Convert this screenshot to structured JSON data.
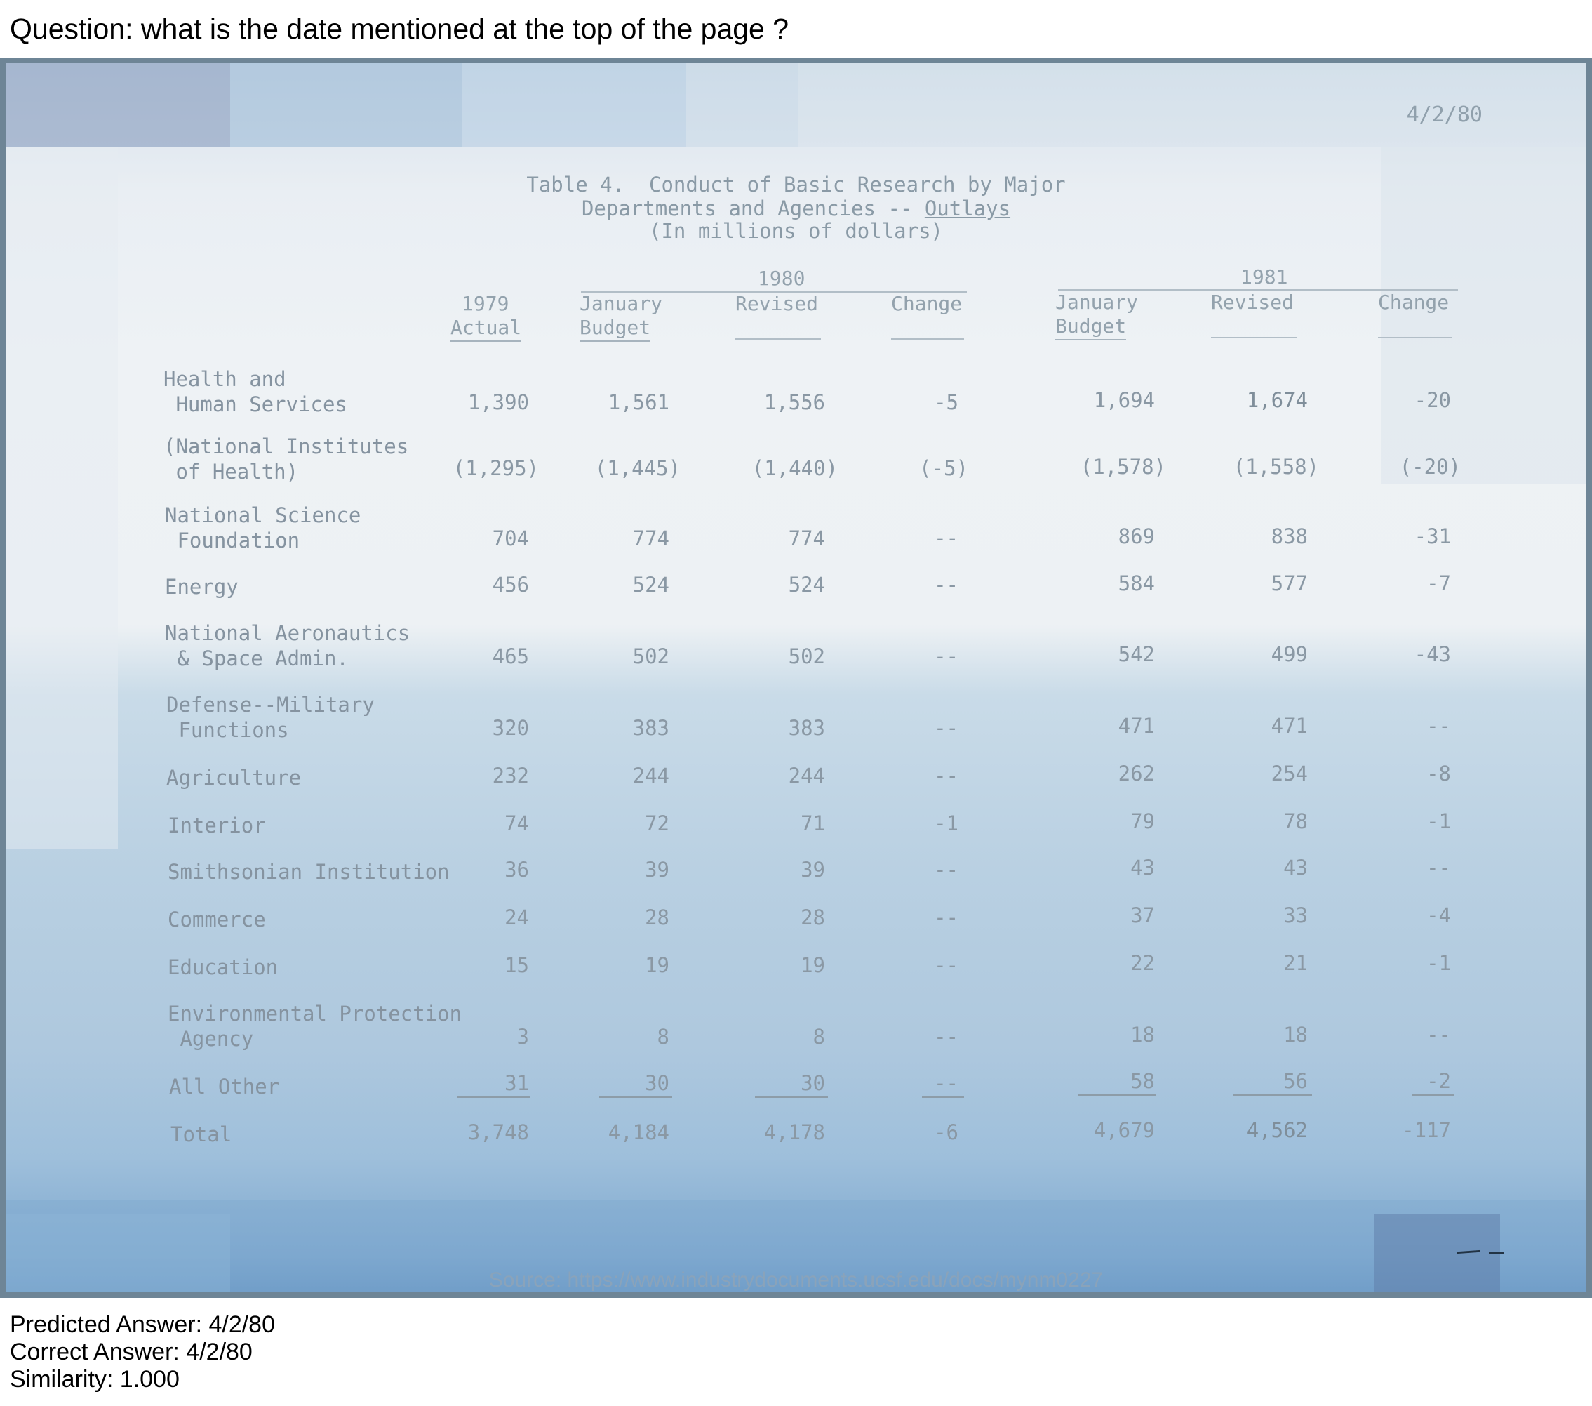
{
  "question": "Question: what is the date mentioned at the top of the page ?",
  "document": {
    "date": "4/2/80",
    "title_line1": "Table 4.  Conduct of Basic Research by Major",
    "title_line2_prefix": "Departments and Agencies -- ",
    "title_line2_underlined": "Outlays",
    "title_line3": "(In millions of dollars)",
    "year_1980": "1980",
    "year_1981": "1981",
    "headers": {
      "c1979_top": "1979",
      "c1979_bottom": "Actual",
      "jan_top": "January",
      "jan_bottom": "Budget",
      "revised": "Revised",
      "change": "Change"
    },
    "rows": [
      {
        "label1": "Health and",
        "label2": " Human Services",
        "values": [
          "1,390",
          "1,561",
          "1,556",
          "-5",
          "1,694",
          "1,674",
          "-20"
        ]
      },
      {
        "label1": "(National Institutes",
        "label2": " of Health)",
        "values": [
          "(1,295)",
          "(1,445)",
          "(1,440)",
          "(-5)",
          "(1,578)",
          "(1,558)",
          "(-20)"
        ]
      },
      {
        "label1": "National Science",
        "label2": " Foundation",
        "values": [
          "704",
          "774",
          "774",
          "--",
          "869",
          "838",
          "-31"
        ]
      },
      {
        "label1": "Energy",
        "label2": "",
        "values": [
          "456",
          "524",
          "524",
          "--",
          "584",
          "577",
          "-7"
        ]
      },
      {
        "label1": "National Aeronautics",
        "label2": " & Space Admin.",
        "values": [
          "465",
          "502",
          "502",
          "--",
          "542",
          "499",
          "-43"
        ]
      },
      {
        "label1": "Defense--Military",
        "label2": " Functions",
        "values": [
          "320",
          "383",
          "383",
          "--",
          "471",
          "471",
          "--"
        ]
      },
      {
        "label1": "Agriculture",
        "label2": "",
        "values": [
          "232",
          "244",
          "244",
          "--",
          "262",
          "254",
          "-8"
        ]
      },
      {
        "label1": "Interior",
        "label2": "",
        "values": [
          "74",
          "72",
          "71",
          "-1",
          "79",
          "78",
          "-1"
        ]
      },
      {
        "label1": "Smithsonian Institution",
        "label2": "",
        "values": [
          "36",
          "39",
          "39",
          "--",
          "43",
          "43",
          "--"
        ]
      },
      {
        "label1": "Commerce",
        "label2": "",
        "values": [
          "24",
          "28",
          "28",
          "--",
          "37",
          "33",
          "-4"
        ]
      },
      {
        "label1": "Education",
        "label2": "",
        "values": [
          "15",
          "19",
          "19",
          "--",
          "22",
          "21",
          "-1"
        ]
      },
      {
        "label1": "Environmental Protection",
        "label2": " Agency",
        "values": [
          "3",
          "8",
          "8",
          "--",
          "18",
          "18",
          "--"
        ]
      },
      {
        "label1": "All Other",
        "label2": "",
        "values": [
          "31",
          "30",
          "30",
          "--",
          "58",
          "56",
          "-2"
        ]
      },
      {
        "label1": "Total",
        "label2": "",
        "values": [
          "3,748",
          "4,184",
          "4,178",
          "-6",
          "4,679",
          "4,562",
          "-117"
        ]
      }
    ],
    "source": "Source: https://www.industrydocuments.ucsf.edu/docs/mynm0227"
  },
  "footer": {
    "predicted": "Predicted Answer: 4/2/80",
    "correct": "Correct Answer: 4/2/80",
    "similarity": "Similarity: 1.000"
  }
}
